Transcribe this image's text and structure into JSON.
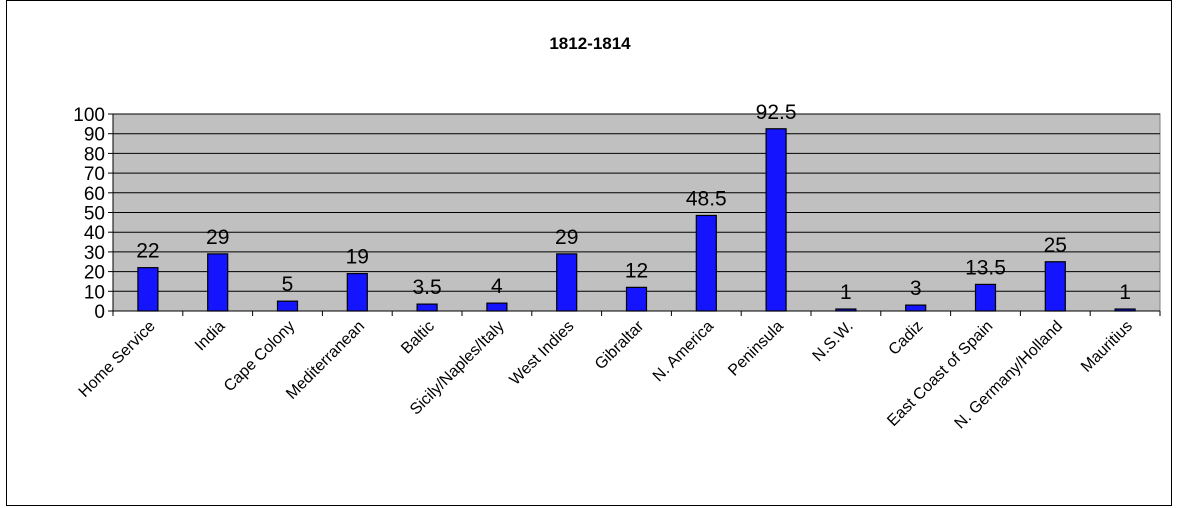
{
  "chart_data": {
    "type": "bar",
    "title": "1812-1814",
    "xlabel": "",
    "ylabel": "",
    "ylim": [
      0,
      100
    ],
    "yticks": [
      0,
      10,
      20,
      30,
      40,
      50,
      60,
      70,
      80,
      90,
      100
    ],
    "grid": true,
    "legend": "none",
    "categories": [
      "Home Service",
      "India",
      "Cape Colony",
      "Mediterranean",
      "Baltic",
      "Sicily/Naples/Italy",
      "West Indies",
      "Gibraltar",
      "N. America",
      "Peninsula",
      "N.S.W.",
      "Cadiz",
      "East Coast of Spain",
      "N. Germany/Holland",
      "Mauritius"
    ],
    "values": [
      22,
      29,
      5,
      19,
      3.5,
      4,
      29,
      12,
      48.5,
      92.5,
      1,
      3,
      13.5,
      25,
      1
    ],
    "data_labels": [
      "22",
      "29",
      "5",
      "19",
      "3.5",
      "4",
      "29",
      "12",
      "48.5",
      "92.5",
      "1",
      "3",
      "13.5",
      "25",
      "1"
    ],
    "colors": {
      "bar_fill": "#1414ff",
      "bar_stroke": "#000000",
      "plot_background": "#c0c0c0",
      "gridline": "#000000"
    }
  }
}
